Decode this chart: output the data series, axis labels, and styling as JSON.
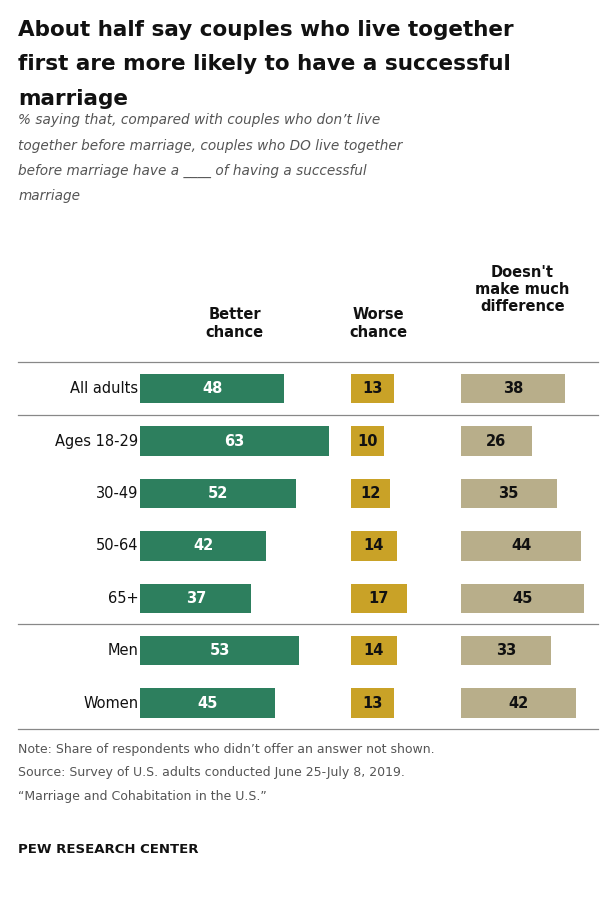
{
  "title": "About half say couples who live together\nfirst are more likely to have a successful\nmarriage",
  "subtitle": "% saying that, compared with couples who don’t live\ntogether before marriage, couples who DO live together\nbefore marriage have a ____ of having a successful\nmarriage",
  "categories": [
    "All adults",
    "Ages 18-29",
    "30-49",
    "50-64",
    "65+",
    "Men",
    "Women"
  ],
  "better_chance": [
    48,
    63,
    52,
    42,
    37,
    53,
    45
  ],
  "worse_chance": [
    13,
    10,
    12,
    14,
    17,
    14,
    13
  ],
  "no_difference": [
    38,
    26,
    35,
    44,
    45,
    33,
    42
  ],
  "color_better": "#2d7f5e",
  "color_worse": "#c9a227",
  "color_no_diff": "#b8ae8a",
  "note_lines": [
    "Note: Share of respondents who didn’t offer an answer not shown.",
    "Source: Survey of U.S. adults conducted June 25-July 8, 2019.",
    "“Marriage and Cohabitation in the U.S.”"
  ],
  "footer": "PEW RESEARCH CENTER",
  "background_color": "#ffffff",
  "scale_better": 0.00485,
  "scale_worse": 0.0053,
  "scale_nodiff": 0.00445
}
